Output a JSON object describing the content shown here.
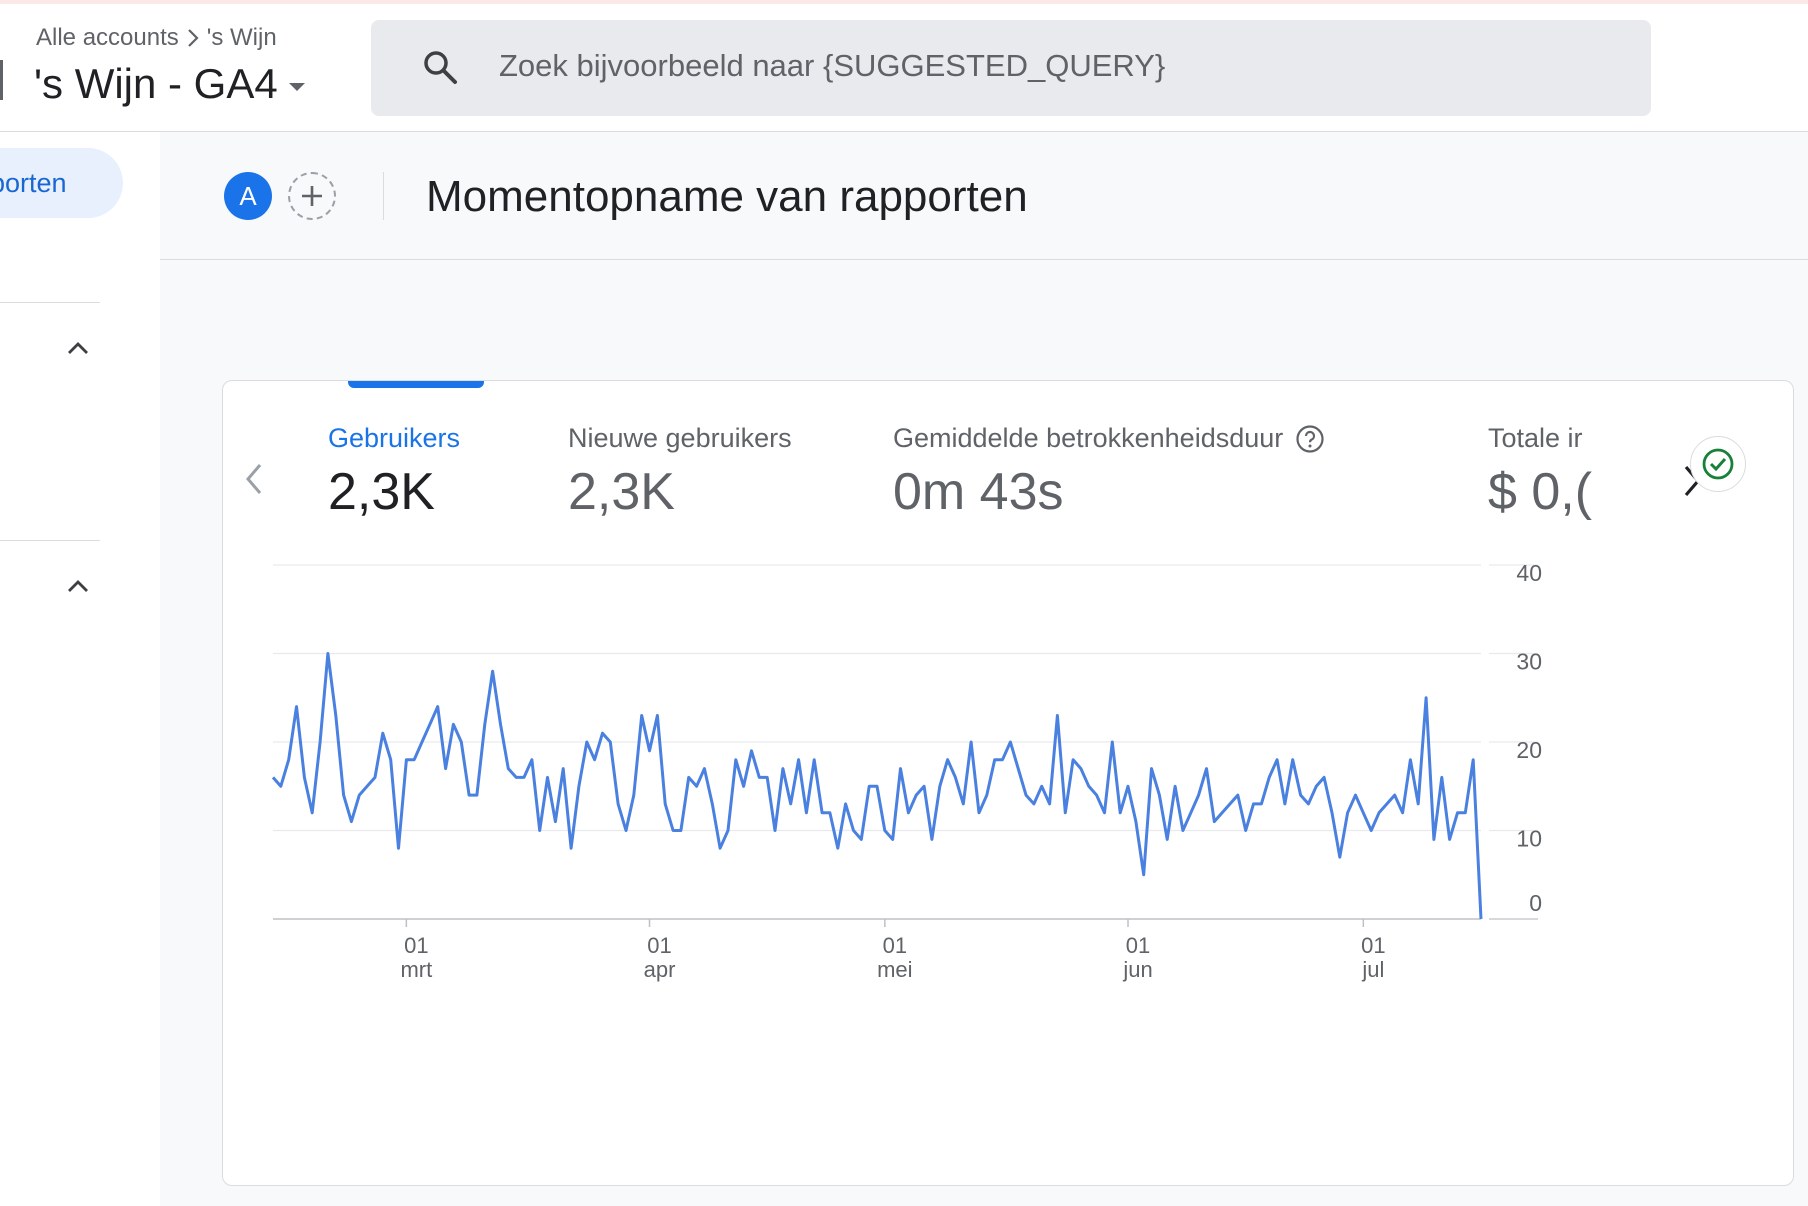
{
  "header": {
    "breadcrumb": {
      "all_accounts": "Alle accounts",
      "account": "'s Wijn"
    },
    "property_name": "'s Wijn - GA4",
    "search_placeholder": "Zoek bijvoorbeeld naar {SUGGESTED_QUERY}"
  },
  "sidenav": {
    "active_item": "porten"
  },
  "main": {
    "avatar_letter": "A",
    "page_title": "Momentopname van rapporten"
  },
  "metrics": [
    {
      "label": "Gebruikers",
      "value": "2,3K",
      "active": true
    },
    {
      "label": "Nieuwe gebruikers",
      "value": "2,3K",
      "active": false
    },
    {
      "label": "Gemiddelde betrokkenheidsduur",
      "value": "0m 43s",
      "active": false,
      "help_icon": "help-circle-icon"
    },
    {
      "label": "Totale ir",
      "value": "$ 0,(",
      "active": false
    }
  ],
  "colors": {
    "accent": "#1a73e8",
    "line": "#4a80e0",
    "check": "#188038"
  },
  "chart_data": {
    "type": "line",
    "ylim": [
      0,
      40
    ],
    "y_ticks": [
      "40",
      "30",
      "20",
      "10",
      "0"
    ],
    "x_ticks": [
      {
        "day": "01",
        "month": "mrt"
      },
      {
        "day": "01",
        "month": "apr"
      },
      {
        "day": "01",
        "month": "mei"
      },
      {
        "day": "01",
        "month": "jun"
      },
      {
        "day": "01",
        "month": "jul"
      }
    ],
    "series": [
      {
        "values": [
          16,
          15,
          18,
          24,
          16,
          12,
          20,
          30,
          23,
          14,
          11,
          14,
          15,
          16,
          21,
          18,
          8,
          18,
          18,
          20,
          22,
          24,
          17,
          22,
          20,
          14,
          14,
          22,
          28,
          22,
          17,
          16,
          16,
          18,
          10,
          16,
          11,
          17,
          8,
          15,
          20,
          18,
          21,
          20,
          13,
          10,
          14,
          23,
          19,
          23,
          13,
          10,
          10,
          16,
          15,
          17,
          13,
          8,
          10,
          18,
          15,
          19,
          16,
          16,
          10,
          17,
          13,
          18,
          12,
          18,
          12,
          12,
          8,
          13,
          10,
          9,
          15,
          15,
          10,
          9,
          17,
          12,
          14,
          15,
          9,
          15,
          18,
          16,
          13,
          20,
          12,
          14,
          18,
          18,
          20,
          17,
          14,
          13,
          15,
          13,
          23,
          12,
          18,
          17,
          15,
          14,
          12,
          20,
          12,
          15,
          11,
          5,
          17,
          14,
          9,
          15,
          10,
          12,
          14,
          17,
          11,
          12,
          13,
          14,
          10,
          13,
          13,
          16,
          18,
          13,
          18,
          14,
          13,
          15,
          16,
          12,
          7,
          12,
          14,
          12,
          10,
          12,
          13,
          14,
          12,
          18,
          13,
          25,
          9,
          16,
          9,
          12,
          12,
          18,
          0
        ]
      }
    ]
  }
}
